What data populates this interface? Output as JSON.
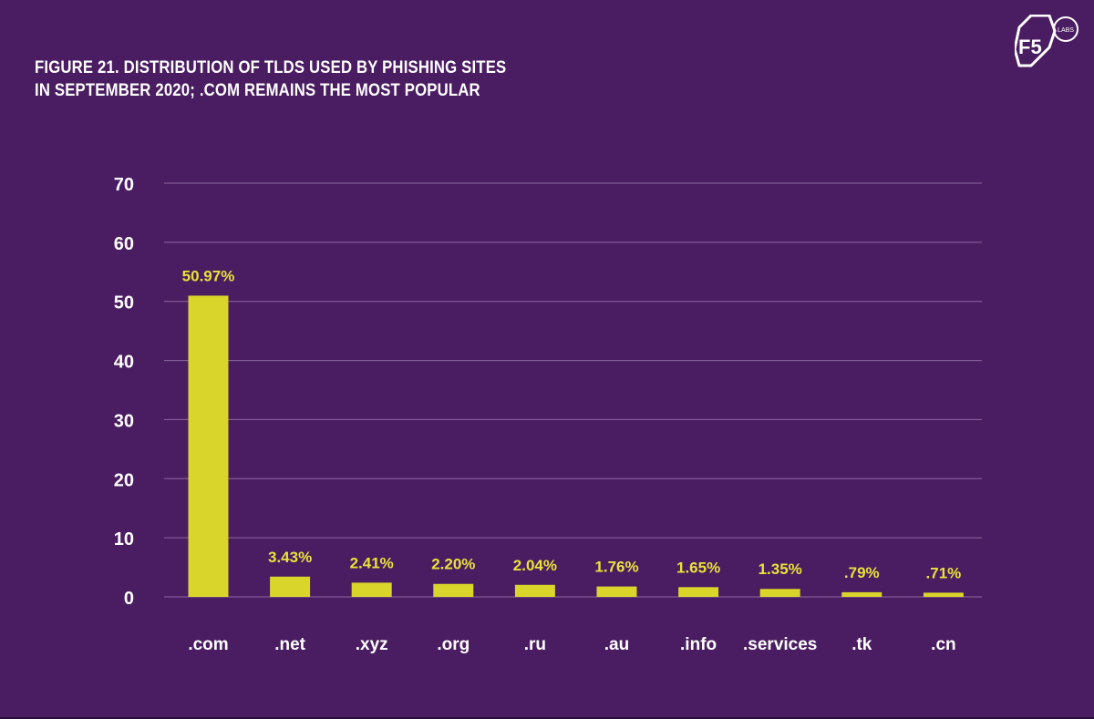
{
  "title": {
    "line1": "FIGURE 21. DISTRIBUTION OF TLDS USED BY PHISHING SITES",
    "line2": "IN SEPTEMBER 2020; .COM REMAINS THE MOST POPULAR"
  },
  "logo": {
    "main": "F5",
    "badge": "LABS"
  },
  "colors": {
    "background": "#4a1c61",
    "bar": "#d9d52a",
    "label": "#e8e23a",
    "grid": "#8a6aa0",
    "text": "#ffffff"
  },
  "chart_data": {
    "type": "bar",
    "title": "Figure 21. Distribution of TLDs used by phishing sites in September 2020; .com remains the most popular",
    "xlabel": "",
    "ylabel": "",
    "categories": [
      ".com",
      ".net",
      ".xyz",
      ".org",
      ".ru",
      ".au",
      ".info",
      ".services",
      ".tk",
      ".cn"
    ],
    "values": [
      50.97,
      3.43,
      2.41,
      2.2,
      2.04,
      1.76,
      1.65,
      1.35,
      0.79,
      0.71
    ],
    "data_labels": [
      "50.97%",
      "3.43%",
      "2.41%",
      "2.20%",
      "2.04%",
      "1.76%",
      "1.65%",
      "1.35%",
      ".79%",
      ".71%"
    ],
    "ylim": [
      0,
      70
    ],
    "yticks": [
      0,
      10,
      20,
      30,
      40,
      50,
      60,
      70
    ],
    "grid": true,
    "legend": "none"
  }
}
